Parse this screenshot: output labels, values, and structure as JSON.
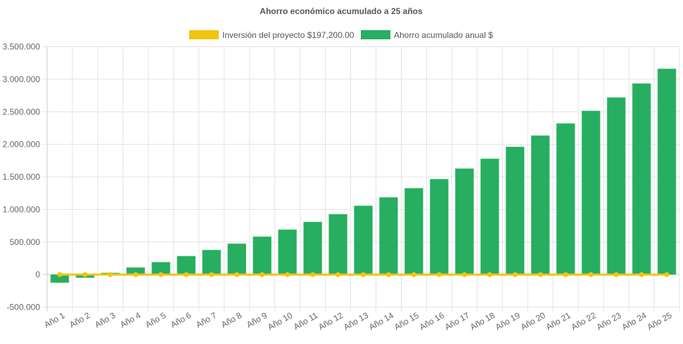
{
  "chart_data": {
    "type": "bar",
    "title": "Ahorro económico acumulado a 25 años",
    "legend_position": "top",
    "grid": true,
    "ylim": [
      -500000,
      3500000
    ],
    "y_ticks": [
      "-500.000",
      "0",
      "500.000",
      "1.000.000",
      "1.500.000",
      "2.000.000",
      "2.500.000",
      "3.000.000",
      "3.500.000"
    ],
    "y_tick_values": [
      -500000,
      0,
      500000,
      1000000,
      1500000,
      2000000,
      2500000,
      3000000,
      3500000
    ],
    "categories": [
      "Año 1",
      "Año 2",
      "Año 3",
      "Año 4",
      "Año 5",
      "Año 6",
      "Año 7",
      "Año 8",
      "Año 9",
      "Año 10",
      "Año 11",
      "Año 12",
      "Año 13",
      "Año 14",
      "Año 15",
      "Año 16",
      "Año 17",
      "Año 18",
      "Año 19",
      "Año 20",
      "Año 21",
      "Año 22",
      "Año 23",
      "Año 24",
      "Año 25"
    ],
    "series": [
      {
        "name": "Inversión del proyecto $197,200.00",
        "type": "line",
        "color": "#f1c40f",
        "values": [
          0,
          0,
          0,
          0,
          0,
          0,
          0,
          0,
          0,
          0,
          0,
          0,
          0,
          0,
          0,
          0,
          0,
          0,
          0,
          0,
          0,
          0,
          0,
          0,
          0
        ]
      },
      {
        "name": "Ahorro acumulado anual $",
        "type": "bar",
        "color": "#27ae60",
        "values": [
          -123000,
          -47000,
          25000,
          108000,
          190000,
          283000,
          377000,
          474000,
          582000,
          690000,
          808000,
          927000,
          1056000,
          1185000,
          1325000,
          1466000,
          1627000,
          1778000,
          1961000,
          2134000,
          2320000,
          2514000,
          2719000,
          2934000,
          3160000
        ]
      }
    ]
  }
}
